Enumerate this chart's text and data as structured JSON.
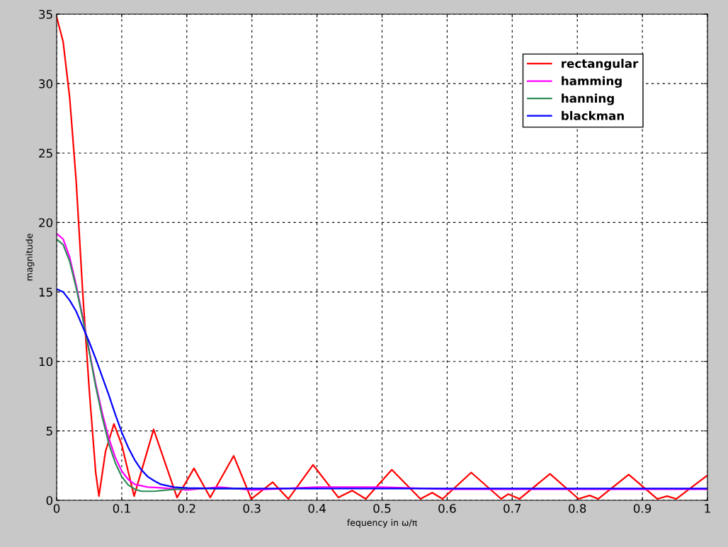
{
  "chart_data": {
    "type": "line",
    "xlabel": "fequency in ω/π",
    "ylabel": "magnitude",
    "xlim": [
      0,
      1
    ],
    "ylim": [
      0,
      35
    ],
    "xticks": [
      0,
      0.1,
      0.2,
      0.3,
      0.4,
      0.5,
      0.6,
      0.7,
      0.8,
      0.9,
      1
    ],
    "yticks": [
      0,
      5,
      10,
      15,
      20,
      25,
      30,
      35
    ],
    "grid": true,
    "legend": "top right",
    "line_style": "solid",
    "marker": "none",
    "series": [
      {
        "name": "rectangular",
        "color": "#ff0000",
        "x": [
          0,
          0.01,
          0.02,
          0.03,
          0.04,
          0.05,
          0.06,
          0.065,
          0.075,
          0.088,
          0.1,
          0.119,
          0.149,
          0.185,
          0.211,
          0.236,
          0.272,
          0.299,
          0.332,
          0.356,
          0.394,
          0.433,
          0.454,
          0.475,
          0.515,
          0.559,
          0.577,
          0.593,
          0.637,
          0.683,
          0.694,
          0.711,
          0.758,
          0.802,
          0.819,
          0.832,
          0.879,
          0.923,
          0.938,
          0.952,
          1
        ],
        "values": [
          34.8,
          33,
          29,
          23,
          15,
          8,
          2,
          0.3,
          3.5,
          5.5,
          4,
          0.3,
          5.1,
          0.2,
          2.3,
          0.2,
          3.2,
          0.1,
          1.3,
          0.1,
          2.55,
          0.2,
          0.7,
          0.1,
          2.2,
          0.1,
          0.55,
          0.1,
          2.0,
          0.1,
          0.45,
          0.1,
          1.9,
          0.1,
          0.35,
          0.1,
          1.85,
          0.1,
          0.3,
          0.1,
          1.8
        ]
      },
      {
        "name": "hamming",
        "color": "#ff00ff",
        "x": [
          0,
          0.01,
          0.02,
          0.03,
          0.04,
          0.05,
          0.06,
          0.07,
          0.08,
          0.09,
          0.1,
          0.11,
          0.12,
          0.14,
          0.16,
          0.2,
          0.25,
          0.3,
          0.4,
          0.5,
          0.6,
          0.7,
          0.8,
          0.9,
          1
        ],
        "values": [
          19.2,
          18.8,
          17.5,
          15.5,
          13.2,
          10.8,
          8.4,
          6.3,
          4.5,
          3.1,
          2.1,
          1.5,
          1.15,
          0.95,
          0.9,
          0.75,
          0.95,
          0.75,
          0.95,
          0.95,
          0.8,
          0.8,
          0.8,
          0.8,
          0.8
        ]
      },
      {
        "name": "hanning",
        "color": "#2e8b57",
        "x": [
          0,
          0.01,
          0.02,
          0.03,
          0.04,
          0.05,
          0.06,
          0.07,
          0.08,
          0.09,
          0.1,
          0.11,
          0.12,
          0.13,
          0.15,
          0.17,
          0.2,
          0.3
        ],
        "values": [
          18.8,
          18.4,
          17.2,
          15.3,
          13.1,
          10.7,
          8.2,
          6.0,
          4.1,
          2.7,
          1.7,
          1.1,
          0.8,
          0.65,
          0.65,
          0.75,
          0.85,
          0.85
        ]
      },
      {
        "name": "blackman",
        "color": "#0000ff",
        "x": [
          0,
          0.01,
          0.02,
          0.03,
          0.04,
          0.05,
          0.06,
          0.07,
          0.08,
          0.09,
          0.1,
          0.11,
          0.12,
          0.13,
          0.14,
          0.15,
          0.16,
          0.18,
          0.2,
          0.25,
          1
        ],
        "values": [
          15.2,
          15,
          14.4,
          13.6,
          12.5,
          11.4,
          10.2,
          8.9,
          7.6,
          6.2,
          4.9,
          3.8,
          2.9,
          2.2,
          1.7,
          1.4,
          1.15,
          0.95,
          0.88,
          0.85,
          0.85
        ]
      }
    ]
  }
}
